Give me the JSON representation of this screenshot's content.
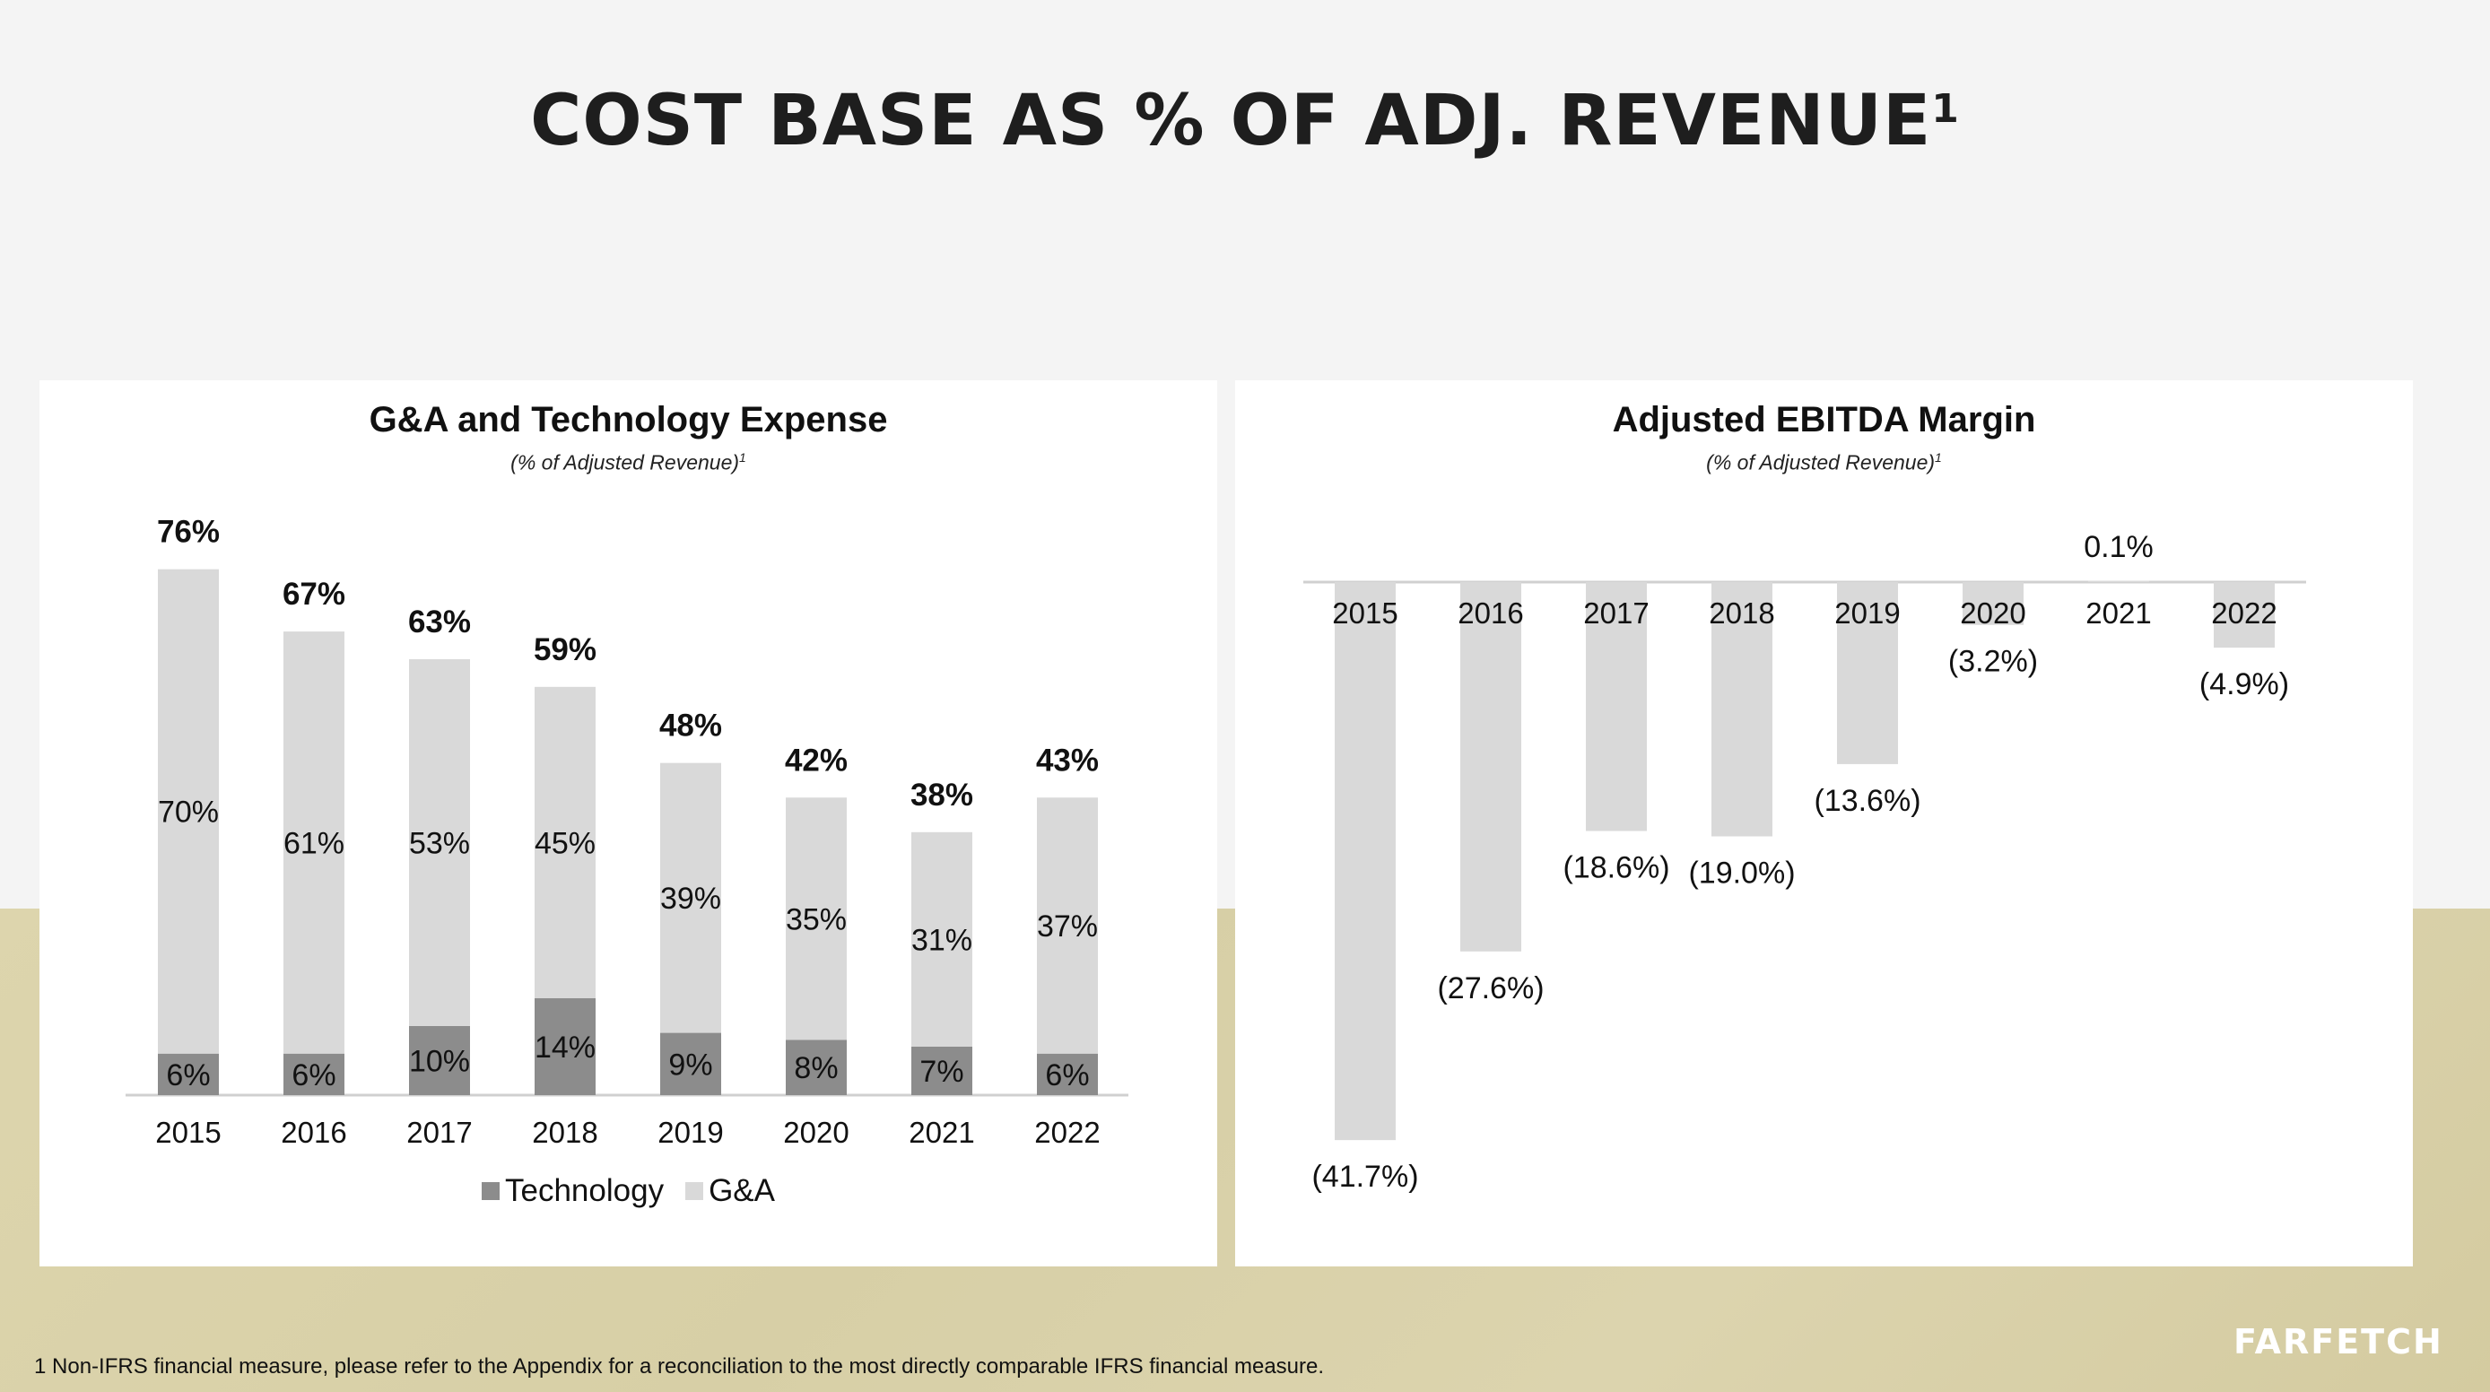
{
  "page": {
    "title": "COST BASE AS % OF ADJ. REVENUE",
    "title_superscript": "1",
    "footnote": "1 Non-IFRS financial measure, please refer to the Appendix for a reconciliation to the most directly comparable IFRS financial measure.",
    "logo": "FARFETCH"
  },
  "left_panel": {
    "title": "G&A and Technology Expense",
    "subtitle": "(% of Adjusted Revenue)",
    "subtitle_superscript": "1",
    "legend": [
      {
        "label": "Technology",
        "color": "#8c8c8c"
      },
      {
        "label": "G&A",
        "color": "#d9d9d9"
      }
    ]
  },
  "right_panel": {
    "title": "Adjusted EBITDA Margin",
    "subtitle": "(% of Adjusted Revenue)",
    "subtitle_superscript": "1"
  },
  "chart_data": [
    {
      "type": "bar",
      "stacked": true,
      "title": "G&A and Technology Expense",
      "subtitle": "(% of Adjusted Revenue)",
      "categories": [
        "2015",
        "2016",
        "2017",
        "2018",
        "2019",
        "2020",
        "2021",
        "2022"
      ],
      "series": [
        {
          "name": "Technology",
          "color": "#8c8c8c",
          "values": [
            6,
            6,
            10,
            14,
            9,
            8,
            7,
            6
          ],
          "labels": [
            "6%",
            "6%",
            "10%",
            "14%",
            "9%",
            "8%",
            "7%",
            "6%"
          ]
        },
        {
          "name": "G&A",
          "color": "#d9d9d9",
          "values": [
            70,
            61,
            53,
            45,
            39,
            35,
            31,
            37
          ],
          "labels": [
            "70%",
            "61%",
            "53%",
            "45%",
            "39%",
            "35%",
            "31%",
            "37%"
          ]
        }
      ],
      "totals": [
        76,
        67,
        63,
        59,
        48,
        42,
        38,
        43
      ],
      "total_labels": [
        "76%",
        "67%",
        "63%",
        "59%",
        "48%",
        "42%",
        "38%",
        "43%"
      ],
      "ylim": [
        0,
        80
      ],
      "grid": false,
      "legend_position": "bottom"
    },
    {
      "type": "bar",
      "title": "Adjusted EBITDA Margin",
      "subtitle": "(% of Adjusted Revenue)",
      "categories": [
        "2015",
        "2016",
        "2017",
        "2018",
        "2019",
        "2020",
        "2021",
        "2022"
      ],
      "values": [
        -41.7,
        -27.6,
        -18.6,
        -19.0,
        -13.6,
        -3.2,
        0.1,
        -4.9
      ],
      "value_labels": [
        "(41.7%)",
        "(27.6%)",
        "(18.6%)",
        "(19.0%)",
        "(13.6%)",
        "(3.2%)",
        "0.1%",
        "(4.9%)"
      ],
      "color": "#d9d9d9",
      "ylim": [
        -45,
        2
      ],
      "grid": false,
      "legend_position": "none"
    }
  ]
}
